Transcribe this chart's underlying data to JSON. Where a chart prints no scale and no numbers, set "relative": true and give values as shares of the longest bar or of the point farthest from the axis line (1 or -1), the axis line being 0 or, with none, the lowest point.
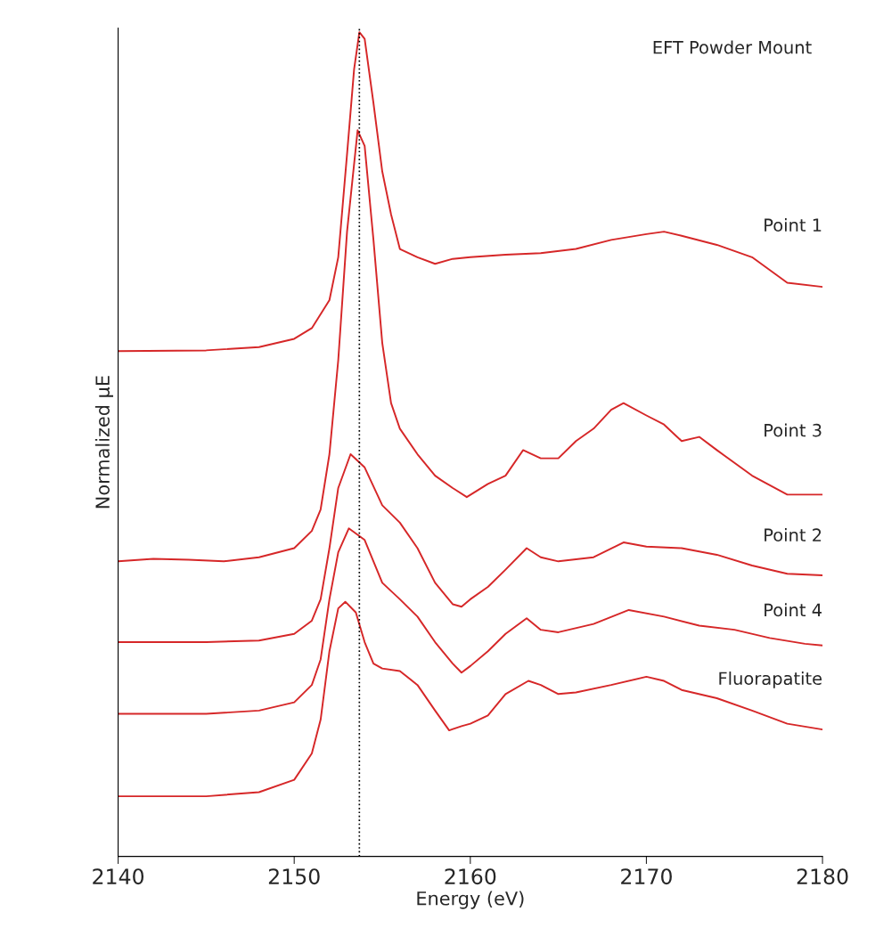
{
  "chart_data": {
    "type": "line",
    "relative": true,
    "xlabel": "Energy (eV)",
    "ylabel": "Normalized μE",
    "xlim": [
      2140,
      2180
    ],
    "xticks": [
      2140,
      2150,
      2160,
      2170,
      2180
    ],
    "annotations": [
      "EFT Powder Mount"
    ],
    "ref_lines": [
      {
        "axis": "x",
        "value": 2153.7,
        "line_style": "dotted",
        "color": "#000000"
      }
    ],
    "series": [
      {
        "name": "Point 1",
        "color": "#d62728",
        "x": [
          2140,
          2145,
          2148,
          2150,
          2151,
          2152,
          2152.5,
          2153,
          2153.4,
          2153.7,
          2154,
          2154.5,
          2155,
          2155.5,
          2156,
          2157,
          2158,
          2159,
          2160,
          2162,
          2164,
          2166,
          2168,
          2170,
          2171,
          2172,
          2174,
          2176,
          2178,
          2180
        ],
        "values": [
          0.613,
          0.614,
          0.618,
          0.628,
          0.641,
          0.675,
          0.727,
          0.852,
          0.955,
          1.0,
          0.992,
          0.914,
          0.831,
          0.779,
          0.737,
          0.727,
          0.719,
          0.725,
          0.727,
          0.73,
          0.732,
          0.737,
          0.748,
          0.755,
          0.758,
          0.753,
          0.742,
          0.727,
          0.696,
          0.691
        ]
      },
      {
        "name": "Point 3",
        "color": "#d62728",
        "x": [
          2140,
          2142,
          2144,
          2146,
          2148,
          2150,
          2151,
          2151.5,
          2152,
          2152.5,
          2153,
          2153.6,
          2154,
          2154.5,
          2155,
          2155.5,
          2156,
          2157,
          2158,
          2159,
          2159.8,
          2161,
          2162,
          2163,
          2164,
          2165,
          2166,
          2167,
          2168,
          2168.7,
          2170,
          2171,
          2172,
          2173,
          2174,
          2176,
          2178,
          2180
        ],
        "values": [
          0.358,
          0.361,
          0.36,
          0.358,
          0.363,
          0.374,
          0.395,
          0.421,
          0.488,
          0.602,
          0.758,
          0.881,
          0.862,
          0.748,
          0.623,
          0.55,
          0.519,
          0.488,
          0.462,
          0.447,
          0.436,
          0.452,
          0.462,
          0.493,
          0.483,
          0.483,
          0.504,
          0.519,
          0.542,
          0.55,
          0.535,
          0.524,
          0.504,
          0.509,
          0.493,
          0.462,
          0.439,
          0.439
        ]
      },
      {
        "name": "Point 2",
        "color": "#d62728",
        "x": [
          2140,
          2145,
          2148,
          2150,
          2151,
          2151.5,
          2152,
          2152.5,
          2153.2,
          2154,
          2155,
          2156,
          2157,
          2158,
          2159,
          2159.5,
          2160,
          2161,
          2162,
          2163.2,
          2164,
          2165,
          2167,
          2168.7,
          2170,
          2172,
          2174,
          2176,
          2178,
          2180
        ],
        "values": [
          0.26,
          0.26,
          0.262,
          0.27,
          0.286,
          0.312,
          0.374,
          0.447,
          0.488,
          0.472,
          0.426,
          0.405,
          0.374,
          0.332,
          0.306,
          0.303,
          0.312,
          0.327,
          0.348,
          0.374,
          0.363,
          0.358,
          0.363,
          0.381,
          0.376,
          0.374,
          0.366,
          0.353,
          0.343,
          0.341
        ]
      },
      {
        "name": "Point 4",
        "color": "#d62728",
        "x": [
          2140,
          2145,
          2148,
          2150,
          2151,
          2151.5,
          2152,
          2152.5,
          2153.1,
          2154,
          2155,
          2156,
          2157,
          2158,
          2159,
          2159.5,
          2160,
          2161,
          2162,
          2163.2,
          2164,
          2165,
          2167,
          2169,
          2171,
          2173,
          2175,
          2177,
          2179,
          2180
        ],
        "values": [
          0.173,
          0.173,
          0.177,
          0.187,
          0.208,
          0.239,
          0.312,
          0.369,
          0.398,
          0.384,
          0.332,
          0.312,
          0.291,
          0.26,
          0.234,
          0.223,
          0.231,
          0.249,
          0.27,
          0.289,
          0.275,
          0.272,
          0.282,
          0.299,
          0.291,
          0.28,
          0.275,
          0.265,
          0.258,
          0.256
        ]
      },
      {
        "name": "Fluorapatite",
        "color": "#d62728",
        "x": [
          2140,
          2145,
          2148,
          2150,
          2151,
          2151.5,
          2152,
          2152.5,
          2152.9,
          2153.5,
          2154,
          2154.5,
          2155,
          2156,
          2157,
          2158,
          2158.8,
          2159.5,
          2160,
          2161,
          2162,
          2163.3,
          2164,
          2165,
          2166,
          2168,
          2170,
          2171,
          2172,
          2174,
          2176,
          2178,
          2180
        ],
        "values": [
          0.073,
          0.073,
          0.078,
          0.093,
          0.125,
          0.166,
          0.249,
          0.301,
          0.309,
          0.296,
          0.26,
          0.234,
          0.228,
          0.225,
          0.208,
          0.177,
          0.153,
          0.158,
          0.161,
          0.171,
          0.197,
          0.213,
          0.208,
          0.197,
          0.199,
          0.208,
          0.218,
          0.213,
          0.202,
          0.192,
          0.177,
          0.161,
          0.154
        ]
      }
    ]
  }
}
